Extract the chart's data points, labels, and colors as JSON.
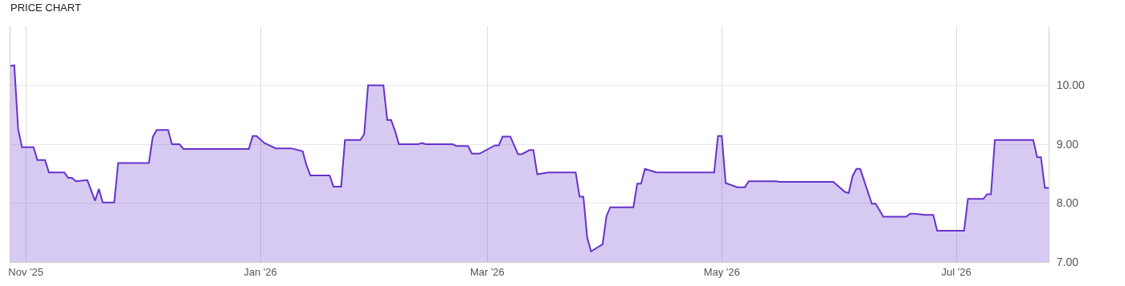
{
  "chart_data": {
    "type": "area",
    "title": "PRICE CHART",
    "x": [
      "2025-10-28",
      "2025-10-29",
      "2025-10-30",
      "2025-10-31",
      "2025-11-03",
      "2025-11-04",
      "2025-11-06",
      "2025-11-07",
      "2025-11-11",
      "2025-11-12",
      "2025-11-13",
      "2025-11-14",
      "2025-11-17",
      "2025-11-19",
      "2025-11-20",
      "2025-11-21",
      "2025-11-24",
      "2025-11-25",
      "2025-12-03",
      "2025-12-04",
      "2025-12-05",
      "2025-12-08",
      "2025-12-09",
      "2025-12-11",
      "2025-12-12",
      "2025-12-29",
      "2025-12-30",
      "2025-12-31",
      "2026-01-02",
      "2026-01-05",
      "2026-01-09",
      "2026-01-12",
      "2026-01-13",
      "2026-01-14",
      "2026-01-19",
      "2026-01-20",
      "2026-01-22",
      "2026-01-23",
      "2026-01-27",
      "2026-01-28",
      "2026-01-29",
      "2026-02-02",
      "2026-02-03",
      "2026-02-04",
      "2026-02-05",
      "2026-02-06",
      "2026-02-11",
      "2026-02-12",
      "2026-02-13",
      "2026-02-20",
      "2026-02-21",
      "2026-02-24",
      "2026-02-25",
      "2026-02-27",
      "2026-03-03",
      "2026-03-04",
      "2026-03-05",
      "2026-03-07",
      "2026-03-09",
      "2026-03-10",
      "2026-03-12",
      "2026-03-13",
      "2026-03-14",
      "2026-03-17",
      "2026-03-24",
      "2026-03-25",
      "2026-03-26",
      "2026-03-27",
      "2026-03-28",
      "2026-03-31",
      "2026-04-01",
      "2026-04-02",
      "2026-04-08",
      "2026-04-09",
      "2026-04-10",
      "2026-04-11",
      "2026-04-14",
      "2026-04-29",
      "2026-04-30",
      "2026-05-01",
      "2026-05-02",
      "2026-05-05",
      "2026-05-07",
      "2026-05-08",
      "2026-05-15",
      "2026-05-16",
      "2026-05-30",
      "2026-06-02",
      "2026-06-03",
      "2026-06-04",
      "2026-06-05",
      "2026-06-06",
      "2026-06-09",
      "2026-06-10",
      "2026-06-12",
      "2026-06-18",
      "2026-06-19",
      "2026-06-20",
      "2026-06-23",
      "2026-06-25",
      "2026-06-26",
      "2026-07-03",
      "2026-07-04",
      "2026-07-08",
      "2026-07-09",
      "2026-07-10",
      "2026-07-11",
      "2026-07-21",
      "2026-07-22",
      "2026-07-23",
      "2026-07-24",
      "2026-07-25"
    ],
    "series": [
      {
        "color": "#6633cc",
        "values": [
          10.33,
          10.34,
          9.26,
          8.95,
          8.95,
          8.73,
          8.73,
          8.52,
          8.52,
          8.43,
          8.43,
          8.37,
          8.39,
          8.04,
          8.24,
          8.01,
          8.01,
          8.68,
          8.68,
          9.12,
          9.24,
          9.24,
          9.0,
          9.0,
          8.92,
          8.92,
          9.14,
          9.14,
          9.02,
          8.93,
          8.93,
          8.88,
          8.64,
          8.47,
          8.47,
          8.28,
          8.28,
          9.07,
          9.07,
          9.17,
          10.0,
          10.0,
          9.41,
          9.41,
          9.23,
          9.0,
          9.0,
          9.02,
          9.0,
          9.0,
          8.97,
          8.97,
          8.84,
          8.84,
          8.98,
          8.98,
          9.13,
          9.13,
          8.83,
          8.83,
          8.9,
          8.9,
          8.49,
          8.52,
          8.52,
          8.11,
          8.11,
          7.41,
          7.18,
          7.3,
          7.78,
          7.93,
          7.93,
          8.33,
          8.33,
          8.58,
          8.52,
          8.52,
          9.14,
          9.14,
          8.34,
          8.27,
          8.27,
          8.37,
          8.37,
          8.36,
          8.36,
          8.19,
          8.17,
          8.46,
          8.58,
          8.58,
          7.99,
          7.99,
          7.77,
          7.77,
          7.82,
          7.82,
          7.8,
          7.8,
          7.53,
          7.53,
          8.07,
          8.07,
          8.15,
          8.15,
          9.07,
          9.07,
          8.78,
          8.78,
          8.26,
          8.26
        ]
      }
    ],
    "xlim": [
      "2025-10-28",
      "2026-07-25"
    ],
    "xticks": [
      {
        "value": "2025-11-01",
        "label": "Nov '25"
      },
      {
        "value": "2026-01-01",
        "label": "Jan '26"
      },
      {
        "value": "2026-03-01",
        "label": "Mar '26"
      },
      {
        "value": "2026-05-01",
        "label": "May '26"
      },
      {
        "value": "2026-07-01",
        "label": "Jul '26"
      }
    ],
    "ylim": [
      7,
      11
    ],
    "yticks": [
      {
        "value": 7,
        "label": "7.00"
      },
      {
        "value": 8,
        "label": "8.00"
      },
      {
        "value": 9,
        "label": "9.00"
      },
      {
        "value": 10,
        "label": "10.00"
      }
    ],
    "grid": true,
    "marker": "none",
    "line_style": "solid"
  }
}
